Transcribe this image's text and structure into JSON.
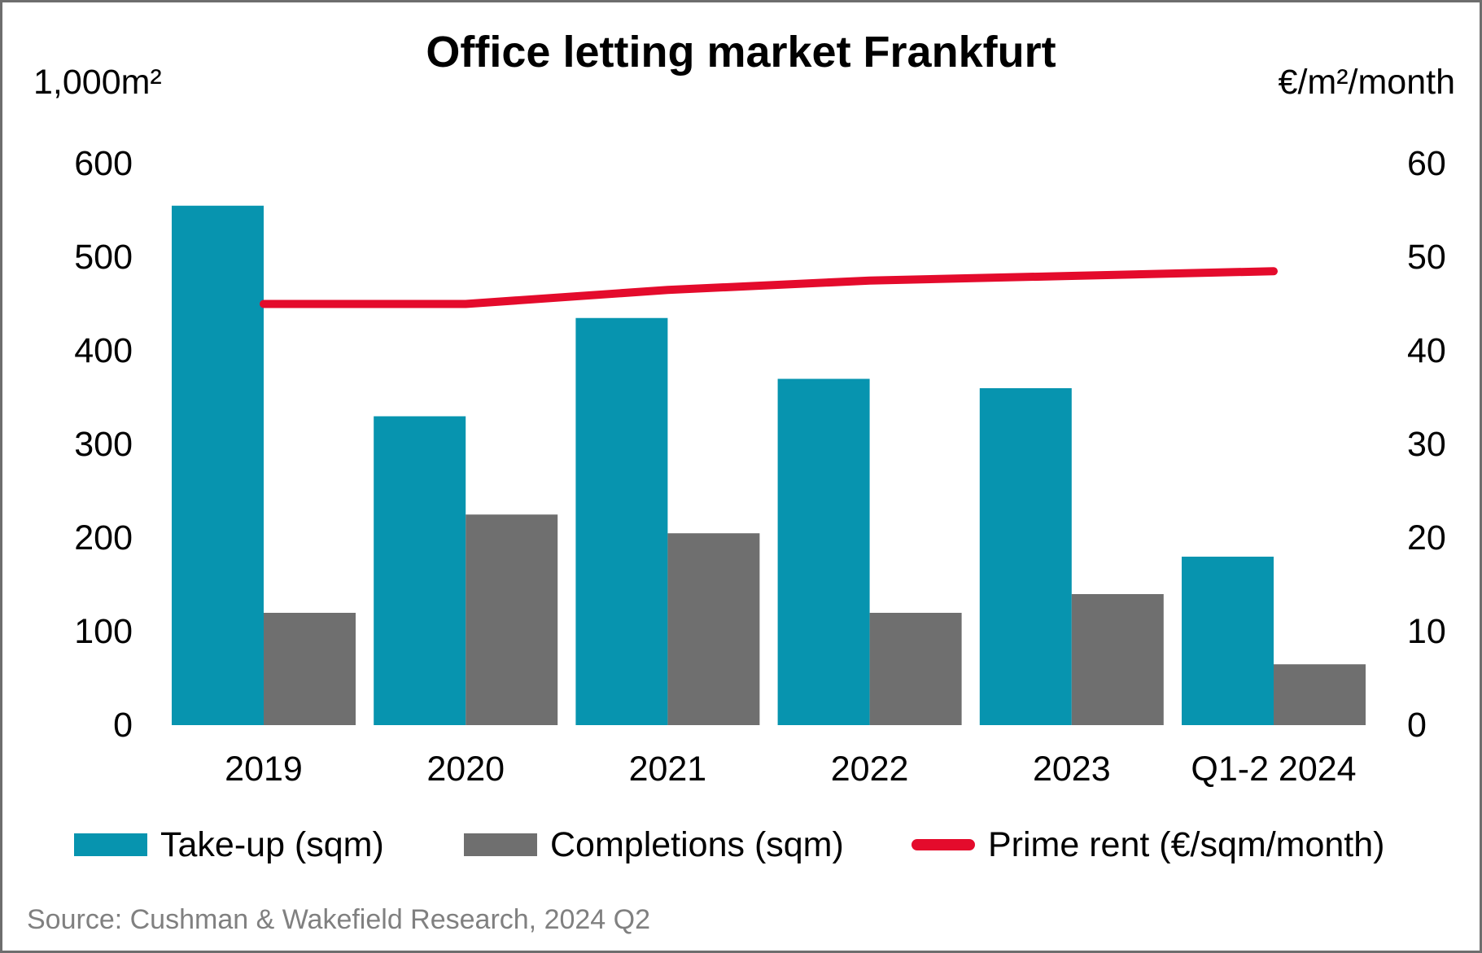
{
  "header": {
    "title": "Office letting market Frankfurt",
    "left_axis_unit": "1,000m²",
    "right_axis_unit": "€/m²/month"
  },
  "legend": [
    {
      "label": "Take-up (sqm)",
      "type": "bar",
      "color": "#0794af"
    },
    {
      "label": "Completions (sqm)",
      "type": "bar",
      "color": "#6f6f6f"
    },
    {
      "label": "Prime rent (€/sqm/month)",
      "type": "line",
      "color": "#e40b2c"
    }
  ],
  "source": "Source: Cushman & Wakefield Research, 2024 Q2",
  "colors": {
    "take_up": "#0794af",
    "completions": "#6f6f6f",
    "prime_rent": "#e40b2c",
    "source_text": "#808080",
    "frame_border": "#6e6e6e"
  },
  "chart_data": {
    "type": "bar",
    "title": "Office letting market Frankfurt",
    "categories": [
      "2019",
      "2020",
      "2021",
      "2022",
      "2023",
      "Q1-2 2024"
    ],
    "series": [
      {
        "name": "Take-up (sqm)",
        "type": "bar",
        "axis": "left",
        "color": "#0794af",
        "values": [
          555,
          330,
          435,
          370,
          360,
          180
        ]
      },
      {
        "name": "Completions (sqm)",
        "type": "bar",
        "axis": "left",
        "color": "#6f6f6f",
        "values": [
          120,
          225,
          205,
          120,
          140,
          65
        ]
      },
      {
        "name": "Prime rent (€/sqm/month)",
        "type": "line",
        "axis": "right",
        "color": "#e40b2c",
        "values": [
          45.0,
          45.0,
          46.5,
          47.5,
          48.0,
          48.5
        ]
      }
    ],
    "left_axis": {
      "label": "1,000m²",
      "range": [
        0,
        600
      ],
      "ticks": [
        0,
        100,
        200,
        300,
        400,
        500,
        600
      ]
    },
    "right_axis": {
      "label": "€/m²/month",
      "range": [
        0,
        60
      ],
      "ticks": [
        0,
        10,
        20,
        30,
        40,
        50,
        60
      ]
    },
    "grid": false,
    "legend_position": "bottom"
  }
}
